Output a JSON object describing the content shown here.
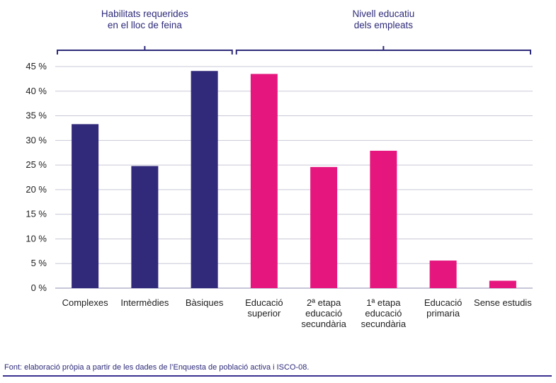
{
  "colors": {
    "group_habilitats": "#31297a",
    "group_nivell": "#e5177f",
    "text": "#2e2b7a",
    "grid": "#c8c8d8",
    "bracket": "#2e2b7a"
  },
  "chart_data": {
    "type": "bar",
    "groups": [
      {
        "label_lines": [
          "Habilitats requerides",
          "en el lloc de feina"
        ],
        "color": "#31297a",
        "category_indices": [
          0,
          1,
          2
        ]
      },
      {
        "label_lines": [
          "Nivell educatiu",
          "dels empleats"
        ],
        "color": "#e5177f",
        "category_indices": [
          3,
          4,
          5,
          6,
          7
        ]
      }
    ],
    "categories": [
      {
        "lines": [
          "Complexes"
        ],
        "value": 33.3,
        "group": 0
      },
      {
        "lines": [
          "Intermèdies"
        ],
        "value": 24.8,
        "group": 0
      },
      {
        "lines": [
          "Bàsiques"
        ],
        "value": 44.1,
        "group": 0
      },
      {
        "lines": [
          "Educació",
          "superior"
        ],
        "value": 43.5,
        "group": 1
      },
      {
        "lines": [
          "2ª etapa",
          "educació",
          "secundària"
        ],
        "value": 24.6,
        "group": 1
      },
      {
        "lines": [
          "1ª etapa",
          "educació",
          "secundària"
        ],
        "value": 27.9,
        "group": 1
      },
      {
        "lines": [
          "Educació",
          "primaria"
        ],
        "value": 5.6,
        "group": 1
      },
      {
        "lines": [
          "Sense estudis"
        ],
        "value": 1.5,
        "group": 1
      }
    ],
    "yticks": [
      "0 %",
      "5 %",
      "10 %",
      "15 %",
      "20 %",
      "25 %",
      "30 %",
      "35 %",
      "40 %",
      "45 %"
    ],
    "ytick_values": [
      0,
      5,
      10,
      15,
      20,
      25,
      30,
      35,
      40,
      45
    ],
    "ylim": [
      0,
      45
    ],
    "grid": true,
    "legend": "none"
  },
  "source": "Font: elaboració pròpia a partir de les dades de l’Enquesta de població activa i ISCO-08."
}
